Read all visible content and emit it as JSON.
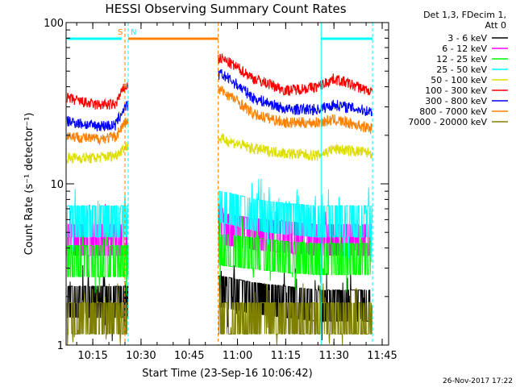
{
  "chart_data": {
    "type": "line",
    "title": "HESSI Observing Summary Count Rates",
    "xlabel": "Start Time (23-Sep-16 10:06:42)",
    "ylabel": "Count Rate (s⁻¹ detector⁻¹)",
    "y_scale": "log",
    "ylim": [
      1,
      100
    ],
    "xlim": [
      "10:06:42",
      "11:47:00"
    ],
    "x_ticks": [
      "10:15",
      "10:30",
      "10:45",
      "11:00",
      "11:15",
      "11:30",
      "11:45"
    ],
    "y_ticks": [
      "1",
      "10",
      "100"
    ],
    "legend": {
      "placement": "top-right",
      "title_lines": [
        "Det 1,3, FDecim 1,",
        "Att 0"
      ]
    },
    "gap": {
      "from": "10:26",
      "to": "10:54"
    },
    "annotations": {
      "flags": [
        {
          "label": "S",
          "at": "10:25",
          "color": "#ff8000"
        },
        {
          "label": "N",
          "at": "10:26",
          "color": "#00ffff"
        }
      ],
      "bars": [
        {
          "from": "10:07",
          "to": "10:24",
          "color": "#00ffff"
        },
        {
          "from": "10:26",
          "to": "10:54",
          "color": "#ff8000"
        },
        {
          "from": "11:26",
          "to": "11:42",
          "color": "#00ffff"
        }
      ]
    },
    "x": [
      "10:07",
      "10:15",
      "10:22",
      "10:25",
      "10:55",
      "11:05",
      "11:15",
      "11:25",
      "11:30",
      "11:42"
    ],
    "series": [
      {
        "name": "3 - 6 keV",
        "color": "#000000",
        "noisy_band": true,
        "values": [
          1.9,
          1.9,
          1.9,
          1.9,
          2.2,
          2.0,
          1.9,
          1.8,
          1.8,
          1.8
        ]
      },
      {
        "name": "6 - 12 keV",
        "color": "#ff00ff",
        "noisy_band": true,
        "values": [
          4.6,
          4.6,
          4.6,
          4.6,
          5.4,
          5.0,
          4.8,
          4.6,
          4.6,
          4.6
        ]
      },
      {
        "name": "12 - 25 keV",
        "color": "#00ff00",
        "noisy_band": true,
        "values": [
          3.4,
          3.4,
          3.4,
          3.4,
          4.0,
          3.8,
          3.6,
          3.5,
          3.5,
          3.5
        ]
      },
      {
        "name": "25 - 50 keV",
        "color": "#00ffff",
        "noisy_band": true,
        "values": [
          6.0,
          6.0,
          6.0,
          6.0,
          7.4,
          6.6,
          6.2,
          6.0,
          6.0,
          6.0
        ]
      },
      {
        "name": "50 - 100 keV",
        "color": "#dddd00",
        "values": [
          14.5,
          14.5,
          15.0,
          17.0,
          19.0,
          16.5,
          15.5,
          15.0,
          16.5,
          15.5
        ]
      },
      {
        "name": "100 - 300 keV",
        "color": "#ff0000",
        "values": [
          34.0,
          31.0,
          31.0,
          40.0,
          60.0,
          45.0,
          38.0,
          40.0,
          45.0,
          37.0
        ]
      },
      {
        "name": "300 - 800 keV",
        "color": "#0000ff",
        "values": [
          24.5,
          23.0,
          23.0,
          30.0,
          48.0,
          34.0,
          29.0,
          29.0,
          31.0,
          28.0
        ]
      },
      {
        "name": "800 - 7000 keV",
        "color": "#ff8000",
        "values": [
          20.0,
          19.0,
          19.5,
          24.0,
          38.0,
          27.0,
          24.0,
          24.0,
          25.0,
          22.0
        ]
      },
      {
        "name": "7000 - 20000 keV",
        "color": "#808000",
        "noisy_band": true,
        "values": [
          1.5,
          1.5,
          1.5,
          1.5,
          1.5,
          1.5,
          1.5,
          1.5,
          1.5,
          1.5
        ]
      }
    ],
    "footer_date": "26-Nov-2017 17:22"
  }
}
